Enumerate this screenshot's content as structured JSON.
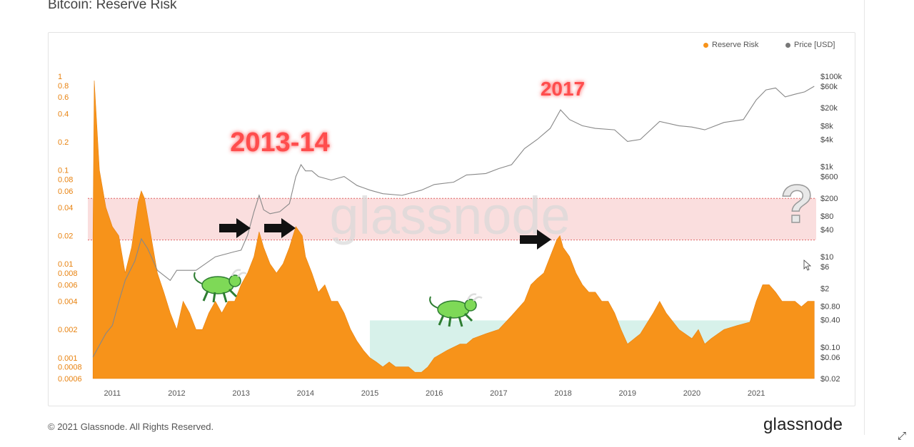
{
  "header": {
    "title": "Bitcoin: Reserve Risk"
  },
  "footer": {
    "copyright": "© 2021 Glassnode. All Rights Reserved.",
    "brand": "glassnode",
    "expand_icon": "expand-icon"
  },
  "colors": {
    "reserve_risk": "#F7931A",
    "price": "#888888",
    "red_band": "#F5B5B5",
    "green_band": "#BDE7DC"
  },
  "chart_data": {
    "type": "area",
    "title": "Bitcoin: Reserve Risk",
    "watermark": "glassnode",
    "legend": {
      "position": "top-right",
      "entries": [
        "Reserve Risk",
        "Price [USD]"
      ]
    },
    "x_ticks": [
      "2011",
      "2012",
      "2013",
      "2014",
      "2015",
      "2016",
      "2017",
      "2018",
      "2019",
      "2020",
      "2021"
    ],
    "y_left": {
      "scale": "log",
      "range": [
        0.0006,
        1
      ],
      "ticks": [
        "1",
        "0.8",
        "0.6",
        "0.4",
        "0.2",
        "0.1",
        "0.08",
        "0.06",
        "0.04",
        "0.02",
        "0.01",
        "0.008",
        "0.006",
        "0.004",
        "0.002",
        "0.001",
        "0.0008",
        "0.0006"
      ]
    },
    "y_right": {
      "scale": "log",
      "range": [
        0.02,
        100000
      ],
      "ticks": [
        "$100k",
        "$60k",
        "$20k",
        "$8k",
        "$4k",
        "$1k",
        "$600",
        "$200",
        "$80",
        "$40",
        "$10",
        "$6",
        "$2",
        "$0.80",
        "$0.40",
        "$0.10",
        "$0.06",
        "$0.02"
      ]
    },
    "bands": [
      {
        "name": "high risk zone",
        "from": 0.018,
        "to": 0.05
      },
      {
        "name": "low risk zone",
        "from": 0.0007,
        "to": 0.0025
      }
    ],
    "annotations": [
      "2013-14",
      "2017",
      "?"
    ],
    "series": [
      {
        "name": "Reserve Risk",
        "x": [
          2010.7,
          2010.72,
          2010.8,
          2010.9,
          2011.0,
          2011.1,
          2011.2,
          2011.3,
          2011.4,
          2011.45,
          2011.5,
          2011.6,
          2011.7,
          2011.8,
          2011.9,
          2012.0,
          2012.1,
          2012.2,
          2012.3,
          2012.4,
          2012.5,
          2012.6,
          2012.7,
          2012.8,
          2012.9,
          2013.0,
          2013.1,
          2013.2,
          2013.28,
          2013.35,
          2013.45,
          2013.55,
          2013.65,
          2013.75,
          2013.85,
          2013.95,
          2014.0,
          2014.1,
          2014.2,
          2014.3,
          2014.4,
          2014.5,
          2014.6,
          2014.7,
          2014.8,
          2014.9,
          2015.0,
          2015.1,
          2015.2,
          2015.3,
          2015.4,
          2015.5,
          2015.6,
          2015.7,
          2015.8,
          2015.9,
          2016.0,
          2016.2,
          2016.4,
          2016.5,
          2016.6,
          2016.8,
          2017.0,
          2017.2,
          2017.4,
          2017.5,
          2017.6,
          2017.7,
          2017.8,
          2017.9,
          2017.95,
          2018.0,
          2018.1,
          2018.2,
          2018.3,
          2018.4,
          2018.5,
          2018.6,
          2018.7,
          2018.8,
          2018.9,
          2019.0,
          2019.2,
          2019.4,
          2019.5,
          2019.6,
          2019.8,
          2020.0,
          2020.1,
          2020.2,
          2020.3,
          2020.5,
          2020.7,
          2020.9,
          2021.0,
          2021.1,
          2021.2,
          2021.3,
          2021.4,
          2021.5,
          2021.6,
          2021.7,
          2021.8,
          2021.9
        ],
        "values": [
          0.02,
          0.9,
          0.1,
          0.04,
          0.025,
          0.02,
          0.008,
          0.015,
          0.045,
          0.06,
          0.05,
          0.02,
          0.008,
          0.005,
          0.003,
          0.002,
          0.004,
          0.003,
          0.002,
          0.002,
          0.003,
          0.004,
          0.003,
          0.004,
          0.004,
          0.006,
          0.008,
          0.012,
          0.022,
          0.015,
          0.01,
          0.008,
          0.01,
          0.015,
          0.025,
          0.02,
          0.012,
          0.008,
          0.005,
          0.006,
          0.004,
          0.004,
          0.003,
          0.002,
          0.0015,
          0.0012,
          0.001,
          0.0009,
          0.0008,
          0.0009,
          0.0008,
          0.0008,
          0.0008,
          0.0007,
          0.0007,
          0.0008,
          0.001,
          0.0012,
          0.0014,
          0.0014,
          0.0016,
          0.0018,
          0.002,
          0.0028,
          0.004,
          0.006,
          0.007,
          0.008,
          0.012,
          0.018,
          0.02,
          0.015,
          0.012,
          0.008,
          0.006,
          0.005,
          0.005,
          0.004,
          0.004,
          0.003,
          0.002,
          0.0014,
          0.0018,
          0.003,
          0.004,
          0.003,
          0.002,
          0.0016,
          0.002,
          0.0014,
          0.0016,
          0.002,
          0.0022,
          0.0024,
          0.004,
          0.006,
          0.006,
          0.005,
          0.004,
          0.004,
          0.004,
          0.0035,
          0.004,
          0.004
        ]
      },
      {
        "name": "Price [USD]",
        "x": [
          2010.7,
          2010.9,
          2011.0,
          2011.1,
          2011.2,
          2011.35,
          2011.45,
          2011.55,
          2011.7,
          2011.9,
          2012.0,
          2012.3,
          2012.6,
          2012.9,
          2013.0,
          2013.1,
          2013.2,
          2013.28,
          2013.35,
          2013.45,
          2013.6,
          2013.75,
          2013.85,
          2013.93,
          2014.0,
          2014.1,
          2014.2,
          2014.4,
          2014.6,
          2014.8,
          2015.0,
          2015.2,
          2015.5,
          2015.8,
          2016.0,
          2016.3,
          2016.5,
          2016.8,
          2017.0,
          2017.2,
          2017.4,
          2017.6,
          2017.8,
          2017.96,
          2018.1,
          2018.3,
          2018.5,
          2018.8,
          2019.0,
          2019.2,
          2019.5,
          2019.8,
          2020.0,
          2020.2,
          2020.5,
          2020.8,
          2021.0,
          2021.15,
          2021.3,
          2021.45,
          2021.6,
          2021.75,
          2021.9
        ],
        "values": [
          0.06,
          0.2,
          0.3,
          1,
          3,
          8,
          25,
          15,
          5,
          3,
          5,
          5,
          10,
          13,
          14,
          30,
          100,
          230,
          110,
          90,
          100,
          150,
          600,
          1100,
          800,
          800,
          600,
          500,
          600,
          380,
          300,
          250,
          230,
          300,
          400,
          450,
          650,
          700,
          900,
          1100,
          2500,
          4000,
          7000,
          18000,
          11000,
          8000,
          7000,
          6500,
          3600,
          4000,
          10000,
          8000,
          7500,
          6500,
          9500,
          11000,
          30000,
          50000,
          55000,
          35000,
          40000,
          45000,
          60000
        ]
      }
    ]
  }
}
